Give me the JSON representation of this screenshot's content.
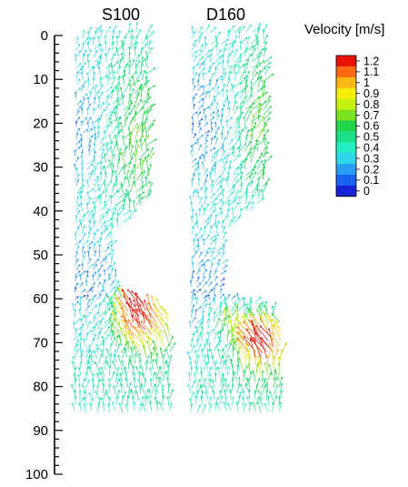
{
  "chart_data": {
    "type": "vector-field",
    "panels": [
      {
        "name": "S100",
        "title": "S100"
      },
      {
        "name": "D160",
        "title": "D160"
      }
    ],
    "y_axis": {
      "ticks": [
        0,
        10,
        20,
        30,
        40,
        50,
        60,
        70,
        80,
        90,
        100
      ],
      "range": [
        0,
        100
      ],
      "inverted": true
    },
    "legend": {
      "title": "Velocity [m/s]",
      "levels": [
        0,
        0.1,
        0.2,
        0.3,
        0.4,
        0.5,
        0.6,
        0.7,
        0.8,
        0.9,
        1,
        1.1,
        1.2
      ],
      "colors": [
        "#1a22d8",
        "#1b62f0",
        "#2a9ef2",
        "#2fd6e6",
        "#22ecc0",
        "#1ddf8a",
        "#22d44a",
        "#7ae21e",
        "#c6ef10",
        "#f7ef0a",
        "#fbb514",
        "#fb6a12",
        "#e81208"
      ],
      "position": "top-right"
    },
    "grid": false
  }
}
